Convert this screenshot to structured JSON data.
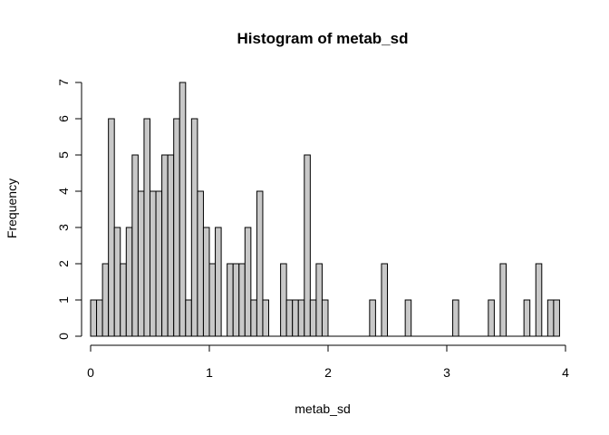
{
  "chart_data": {
    "type": "bar",
    "title": "Histogram of metab_sd",
    "xlabel": "metab_sd",
    "ylabel": "Frequency",
    "bin_width": 0.05,
    "x_start": 0,
    "bin_counts": [
      1,
      1,
      2,
      6,
      3,
      2,
      3,
      5,
      4,
      6,
      4,
      4,
      5,
      5,
      6,
      7,
      1,
      6,
      4,
      3,
      2,
      3,
      0,
      2,
      2,
      2,
      3,
      1,
      4,
      1,
      0,
      0,
      2,
      1,
      1,
      1,
      5,
      1,
      2,
      1,
      0,
      0,
      0,
      0,
      0,
      0,
      0,
      1,
      0,
      2,
      0,
      0,
      0,
      1,
      0,
      0,
      0,
      0,
      0,
      0,
      0,
      1,
      0,
      0,
      0,
      0,
      0,
      1,
      0,
      2,
      0,
      0,
      0,
      1,
      0,
      2,
      0,
      1,
      1
    ],
    "xlim": [
      0,
      4
    ],
    "ylim": [
      0,
      7
    ],
    "xticks": [
      "0",
      "1",
      "2",
      "3",
      "4"
    ],
    "yticks": [
      "0",
      "1",
      "2",
      "3",
      "4",
      "5",
      "6",
      "7"
    ],
    "colors": {
      "bar_fill": "#c8c8c8",
      "bar_edge": "#000000"
    }
  }
}
